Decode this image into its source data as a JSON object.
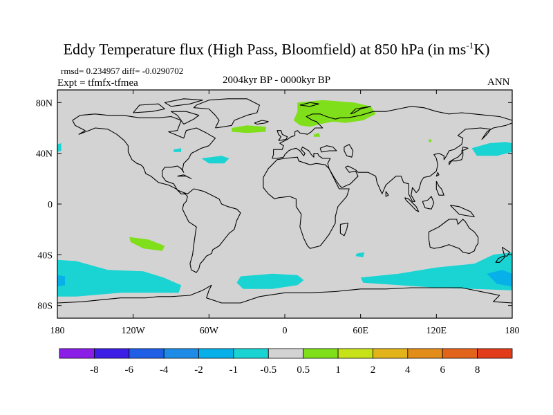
{
  "header": {
    "title_main": "Eddy Temperature flux (High Pass, Bloomfield) at 850 hPa (in ms",
    "title_sup": "-1",
    "title_end": "K)",
    "stats": "rmsd= 0.234957 diff= -0.0290702",
    "experiment": "Expt = tfmfx-tfmea",
    "period": "2004kyr BP - 0000kyr BP",
    "season": "ANN"
  },
  "map": {
    "projection": "cylindrical-equidistant",
    "lon_range": [
      -180,
      180
    ],
    "lat_range": [
      -90,
      90
    ],
    "y_ticks": [
      {
        "lat": 80,
        "label": "80N"
      },
      {
        "lat": 40,
        "label": "40N"
      },
      {
        "lat": 0,
        "label": "0"
      },
      {
        "lat": -40,
        "label": "40S"
      },
      {
        "lat": -80,
        "label": "80S"
      }
    ],
    "x_ticks": [
      {
        "lon": -180,
        "label": "180"
      },
      {
        "lon": -120,
        "label": "120W"
      },
      {
        "lon": -60,
        "label": "60W"
      },
      {
        "lon": 0,
        "label": "0"
      },
      {
        "lon": 60,
        "label": "60E"
      },
      {
        "lon": 120,
        "label": "120E"
      },
      {
        "lon": 180,
        "label": "180"
      }
    ],
    "background_color": "#d3d3d3",
    "regions": [
      {
        "name": "scandinavia-russia-positive",
        "class": "0.5 to 1",
        "color": "#7fdf1a",
        "pts": [
          [
            10,
            80
          ],
          [
            30,
            82
          ],
          [
            55,
            80
          ],
          [
            68,
            77
          ],
          [
            72,
            71
          ],
          [
            62,
            66
          ],
          [
            48,
            64
          ],
          [
            38,
            65
          ],
          [
            28,
            63
          ],
          [
            20,
            61
          ],
          [
            12,
            62
          ],
          [
            7,
            66
          ],
          [
            10,
            73
          ]
        ]
      },
      {
        "name": "north-atlantic-positive",
        "class": "0.5 to 1",
        "color": "#7fdf1a",
        "pts": [
          [
            -42,
            60
          ],
          [
            -30,
            62
          ],
          [
            -15,
            61
          ],
          [
            -15,
            57
          ],
          [
            -30,
            56
          ],
          [
            -42,
            57
          ]
        ]
      },
      {
        "name": "east-europe-positive",
        "class": "0.5 to 1",
        "color": "#7fdf1a",
        "pts": [
          [
            23,
            55
          ],
          [
            27,
            56
          ],
          [
            28,
            53
          ],
          [
            23,
            53
          ]
        ]
      },
      {
        "name": "south-pacific-positive",
        "class": "0.5 to 1",
        "color": "#7fdf1a",
        "pts": [
          [
            -123,
            -26
          ],
          [
            -108,
            -28
          ],
          [
            -95,
            -33
          ],
          [
            -97,
            -37
          ],
          [
            -112,
            -35
          ],
          [
            -122,
            -30
          ]
        ]
      },
      {
        "name": "siberia-positive",
        "class": "0.5 to 1",
        "color": "#7fdf1a",
        "pts": [
          [
            114,
            51
          ],
          [
            116,
            51
          ],
          [
            116,
            49
          ],
          [
            114,
            49
          ]
        ]
      },
      {
        "name": "north-atlantic-negative",
        "class": "-1 to -0.5",
        "color": "#1ad3d3",
        "pts": [
          [
            -66,
            36
          ],
          [
            -50,
            38
          ],
          [
            -44,
            36
          ],
          [
            -48,
            32
          ],
          [
            -60,
            32
          ]
        ]
      },
      {
        "name": "great-lakes-negative",
        "class": "-1 to -0.5",
        "color": "#1ad3d3",
        "pts": [
          [
            -88,
            43
          ],
          [
            -82,
            44
          ],
          [
            -82,
            41
          ],
          [
            -88,
            41
          ]
        ]
      },
      {
        "name": "north-pacific-east-negative",
        "class": "-1 to -0.5",
        "color": "#1ad3d3",
        "pts": [
          [
            148,
            44
          ],
          [
            162,
            48
          ],
          [
            175,
            49
          ],
          [
            180,
            48
          ],
          [
            180,
            41
          ],
          [
            168,
            38
          ],
          [
            152,
            38
          ]
        ]
      },
      {
        "name": "north-pacific-west-negative",
        "class": "-1 to -0.5",
        "color": "#1ad3d3",
        "pts": [
          [
            -180,
            47
          ],
          [
            -177,
            48
          ],
          [
            -177,
            42
          ],
          [
            -180,
            41
          ]
        ]
      },
      {
        "name": "southern-ocean-pacific-negative",
        "class": "-1 to -0.5",
        "color": "#1ad3d3",
        "pts": [
          [
            -180,
            -44
          ],
          [
            -165,
            -45
          ],
          [
            -140,
            -52
          ],
          [
            -112,
            -53
          ],
          [
            -96,
            -58
          ],
          [
            -82,
            -64
          ],
          [
            -84,
            -70
          ],
          [
            -100,
            -70
          ],
          [
            -130,
            -70
          ],
          [
            -165,
            -73
          ],
          [
            -180,
            -73
          ]
        ]
      },
      {
        "name": "southern-ocean-atlantic-negative",
        "class": "-1 to -0.5",
        "color": "#1ad3d3",
        "pts": [
          [
            -35,
            -57
          ],
          [
            -10,
            -55
          ],
          [
            10,
            -56
          ],
          [
            15,
            -60
          ],
          [
            10,
            -64
          ],
          [
            -10,
            -67
          ],
          [
            -33,
            -67
          ],
          [
            -38,
            -62
          ]
        ]
      },
      {
        "name": "southern-ocean-indian-negative",
        "class": "-1 to -0.5",
        "color": "#1ad3d3",
        "pts": [
          [
            60,
            -58
          ],
          [
            90,
            -55
          ],
          [
            120,
            -50
          ],
          [
            150,
            -47
          ],
          [
            165,
            -40
          ],
          [
            180,
            -38
          ],
          [
            180,
            -68
          ],
          [
            150,
            -67
          ],
          [
            120,
            -66
          ],
          [
            90,
            -64
          ],
          [
            62,
            -62
          ]
        ]
      },
      {
        "name": "south-atlantic-small-negative",
        "class": "-1 to -0.5",
        "color": "#1ad3d3",
        "pts": [
          [
            57,
            -39
          ],
          [
            63,
            -38
          ],
          [
            62,
            -42
          ],
          [
            56,
            -41
          ]
        ]
      },
      {
        "name": "pacific-core-negative",
        "class": "-2 to -1",
        "color": "#07b0e8",
        "pts": [
          [
            -180,
            -56
          ],
          [
            -174,
            -57
          ],
          [
            -174,
            -64
          ],
          [
            -180,
            -65
          ]
        ]
      },
      {
        "name": "tasman-core-negative",
        "class": "-2 to -1",
        "color": "#07b0e8",
        "pts": [
          [
            160,
            -55
          ],
          [
            172,
            -52
          ],
          [
            180,
            -55
          ],
          [
            180,
            -65
          ],
          [
            168,
            -63
          ]
        ]
      }
    ]
  },
  "colorbar": {
    "colors": [
      "#8a1ee6",
      "#3c1ee6",
      "#1e5fe6",
      "#1e8ce6",
      "#07b0e8",
      "#1ad3d3",
      "#d3d3d3",
      "#7fdf1a",
      "#c8e21a",
      "#e2b41a",
      "#e28c1a",
      "#e2641a",
      "#e23c1a"
    ],
    "labels": [
      "-8",
      "-6",
      "-4",
      "-2",
      "-1",
      "-0.5",
      "0.5",
      "1",
      "2",
      "4",
      "6",
      "8"
    ]
  }
}
